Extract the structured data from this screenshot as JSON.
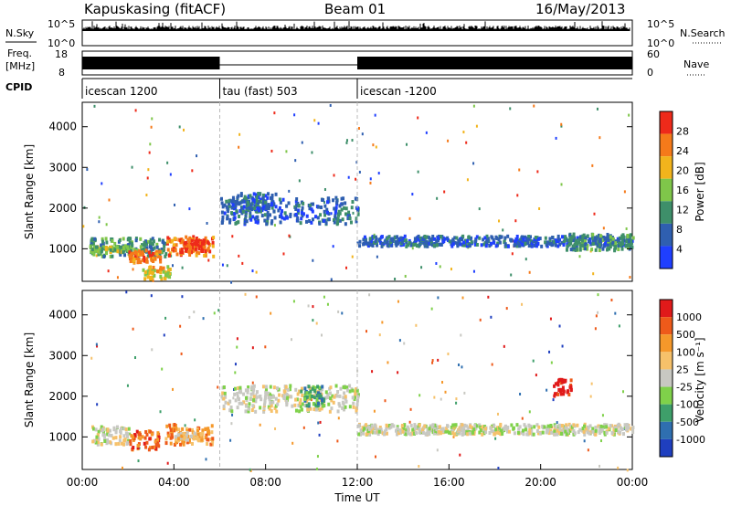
{
  "header": {
    "station": "Kapuskasing (fitACF)",
    "beam": "Beam 01",
    "date": "16/May/2013"
  },
  "strip_labels": {
    "nsky": "N.Sky",
    "nsearch": "N.Search",
    "freq_line1": "Freq.",
    "freq_line2": "[MHz]",
    "nave": "Nave",
    "cpid": "CPID"
  },
  "chart_data": [
    {
      "type": "line",
      "panel": "noise",
      "left_ticks": [
        "10^5",
        "10^0"
      ],
      "right_ticks": [
        "10^5",
        "10^0"
      ]
    },
    {
      "type": "line",
      "panel": "frequency",
      "left_ticks": [
        "18",
        "8"
      ],
      "right_ticks": [
        "60",
        "0"
      ],
      "segments": [
        {
          "start_hr": 0,
          "end_hr": 6.0
        },
        {
          "start_hr": 12.0,
          "end_hr": 24
        }
      ]
    },
    {
      "type": "table",
      "panel": "cpid",
      "programs": [
        {
          "start_hr": 0,
          "label": "icescan 1200"
        },
        {
          "start_hr": 6.0,
          "label": "tau (fast) 503"
        },
        {
          "start_hr": 12.0,
          "label": "icescan -1200"
        }
      ]
    },
    {
      "type": "heatmap",
      "panel": "power",
      "ylabel": "Slant Range [km]",
      "ylim": [
        200,
        4600
      ],
      "yticks": [
        1000,
        2000,
        3000,
        4000
      ],
      "xlim": [
        0,
        24
      ],
      "colorbar": {
        "label": "Power [dB]",
        "ticks": [
          "4",
          "8",
          "12",
          "16",
          "20",
          "24",
          "28"
        ],
        "colors": [
          "#1f3fff",
          "#2f5fb0",
          "#3e8f6a",
          "#7fc64a",
          "#f2b41c",
          "#f57a1a",
          "#ee2a1a"
        ]
      },
      "echo_regions": [
        {
          "t0": 0.3,
          "t1": 3.6,
          "r0": 850,
          "r1": 1300,
          "level": 2
        },
        {
          "t0": 0.3,
          "t1": 2.0,
          "r0": 950,
          "r1": 1100,
          "level": 3
        },
        {
          "t0": 2.0,
          "t1": 3.4,
          "r0": 700,
          "r1": 1000,
          "level": 5
        },
        {
          "t0": 3.6,
          "t1": 5.7,
          "r0": 850,
          "r1": 1350,
          "level": 5
        },
        {
          "t0": 4.2,
          "t1": 5.5,
          "r0": 950,
          "r1": 1250,
          "level": 6
        },
        {
          "t0": 6.0,
          "t1": 12.0,
          "r0": 1650,
          "r1": 2300,
          "level": 1
        },
        {
          "t0": 6.5,
          "t1": 8.5,
          "r0": 1950,
          "r1": 2400,
          "level": 1
        },
        {
          "t0": 12.0,
          "t1": 24.0,
          "r0": 1100,
          "r1": 1350,
          "level": 1
        },
        {
          "t0": 21.0,
          "t1": 24.0,
          "r0": 1000,
          "r1": 1400,
          "level": 2
        },
        {
          "t0": 2.6,
          "t1": 3.8,
          "r0": 300,
          "r1": 600,
          "level": 4
        }
      ]
    },
    {
      "type": "heatmap",
      "panel": "velocity",
      "xlabel": "Time UT",
      "ylabel": "Slant Range [km]",
      "ylim": [
        200,
        4600
      ],
      "yticks": [
        1000,
        2000,
        3000,
        4000
      ],
      "xlim": [
        0,
        24
      ],
      "xticks": [
        "00:00",
        "04:00",
        "08:00",
        "12:00",
        "16:00",
        "20:00",
        "00:00"
      ],
      "colorbar": {
        "label": "Velocity [m s⁻¹]",
        "ticks": [
          "1000",
          "500",
          "100",
          "25",
          "-25",
          "-100",
          "-500",
          "-1000"
        ],
        "colors": [
          "#1f3fbf",
          "#2f6fb0",
          "#3e9f6a",
          "#7fd14a",
          "#c8c8c2",
          "#f6c16a",
          "#f5982a",
          "#ee5a1a",
          "#e01a1a"
        ]
      },
      "echo_regions": [
        {
          "t0": 0.3,
          "t1": 2.0,
          "r0": 850,
          "r1": 1300,
          "level": 4
        },
        {
          "t0": 2.0,
          "t1": 3.3,
          "r0": 700,
          "r1": 1200,
          "level": 7
        },
        {
          "t0": 3.6,
          "t1": 5.7,
          "r0": 850,
          "r1": 1350,
          "level": 6
        },
        {
          "t0": 4.0,
          "t1": 5.2,
          "r0": 950,
          "r1": 1150,
          "level": 5
        },
        {
          "t0": 6.0,
          "t1": 12.0,
          "r0": 1650,
          "r1": 2300,
          "level": 4
        },
        {
          "t0": 9.5,
          "t1": 10.5,
          "r0": 1800,
          "r1": 2300,
          "level": 2
        },
        {
          "t0": 12.0,
          "t1": 24.0,
          "r0": 1100,
          "r1": 1350,
          "level": 4
        },
        {
          "t0": 20.5,
          "t1": 21.3,
          "r0": 2050,
          "r1": 2450,
          "level": 8
        }
      ]
    }
  ]
}
